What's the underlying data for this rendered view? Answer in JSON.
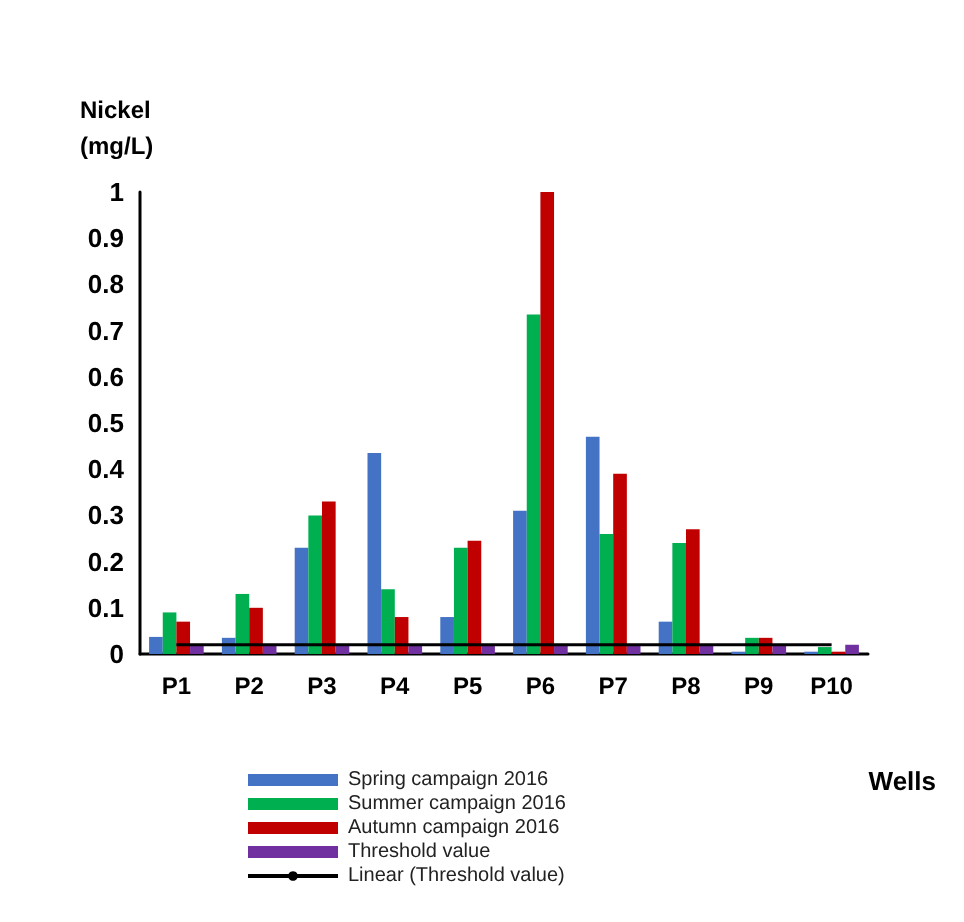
{
  "chart_data": {
    "type": "bar",
    "ylabel": "Nickel\n(mg/L)",
    "xlabel": "Wells",
    "categories": [
      "P1",
      "P2",
      "P3",
      "P4",
      "P5",
      "P6",
      "P7",
      "P8",
      "P9",
      "P10"
    ],
    "series": [
      {
        "name": "Spring campaign 2016",
        "color": "#4472c4",
        "values": [
          0.037,
          0.035,
          0.23,
          0.435,
          0.08,
          0.31,
          0.47,
          0.07,
          0.005,
          0.005
        ]
      },
      {
        "name": "Summer campaign 2016",
        "color": "#00b050",
        "values": [
          0.09,
          0.13,
          0.3,
          0.14,
          0.23,
          0.735,
          0.26,
          0.24,
          0.035,
          0.015
        ]
      },
      {
        "name": "Autumn campaign 2016",
        "color": "#c00000",
        "values": [
          0.07,
          0.1,
          0.33,
          0.08,
          0.245,
          1.0,
          0.39,
          0.27,
          0.035,
          0.005
        ]
      },
      {
        "name": "Threshold value",
        "color": "#7030a0",
        "values": [
          0.02,
          0.02,
          0.02,
          0.02,
          0.02,
          0.02,
          0.02,
          0.02,
          0.02,
          0.02
        ]
      },
      {
        "name": "Linear (Threshold value)",
        "type": "line",
        "color": "#000000",
        "values": [
          0.02,
          0.02,
          0.02,
          0.02,
          0.02,
          0.02,
          0.02,
          0.02,
          0.02,
          0.02
        ]
      }
    ],
    "ylim": [
      0,
      1
    ],
    "yticks": [
      0,
      0.1,
      0.2,
      0.3,
      0.4,
      0.5,
      0.6,
      0.7,
      0.8,
      0.9,
      1
    ],
    "grid": false,
    "legend": "bottom",
    "marker": "none"
  }
}
